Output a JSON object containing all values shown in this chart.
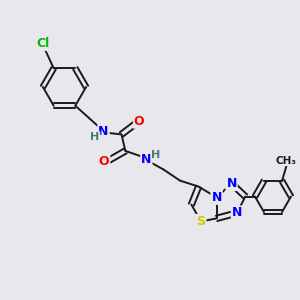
{
  "bg_color": "#e8e8ec",
  "bond_color": "#1a1a1a",
  "atom_colors": {
    "N": "#0000ff",
    "O": "#ff0000",
    "S": "#cccc00",
    "Cl": "#00bb00",
    "H": "#4a7a7a",
    "C": "#1a1a1a"
  },
  "figsize": [
    3.0,
    3.0
  ],
  "dpi": 100
}
